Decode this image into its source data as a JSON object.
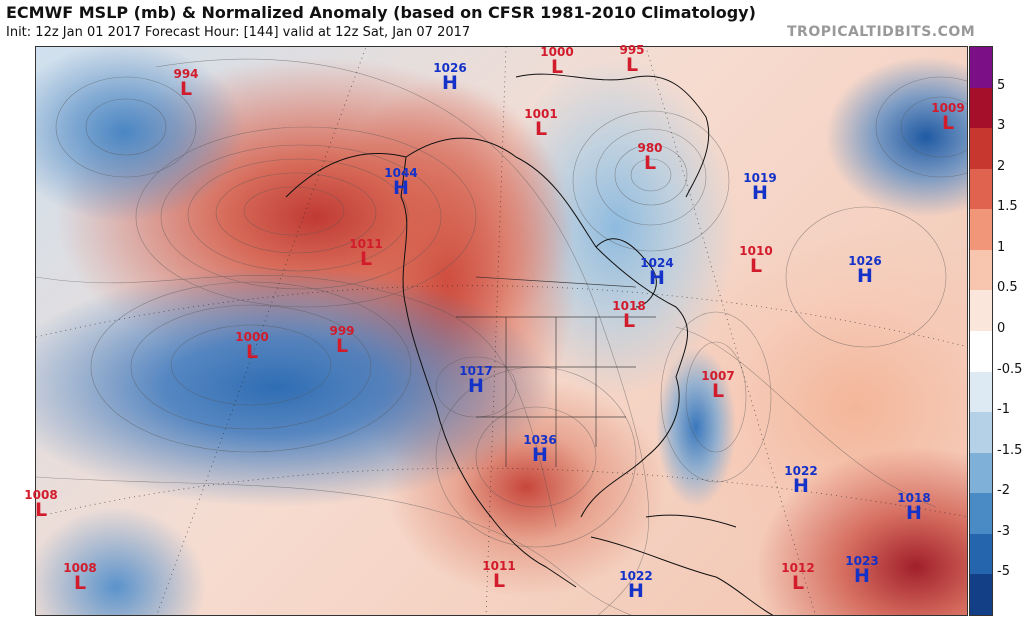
{
  "header": {
    "title": "ECMWF MSLP (mb) & Normalized Anomaly (based on CFSR 1981-2010 Climatology)",
    "subtitle": "Init: 12z Jan 01 2017   Forecast Hour: [144]   valid at 12z Sat, Jan 07 2017",
    "site": "TROPICALTIDBITS.COM"
  },
  "pressure_centers": [
    {
      "type": "L",
      "value": "994"
    },
    {
      "type": "H",
      "value": "1026"
    },
    {
      "type": "L",
      "value": "1000"
    },
    {
      "type": "L",
      "value": "995"
    },
    {
      "type": "L",
      "value": "1009"
    },
    {
      "type": "L",
      "value": "1001"
    },
    {
      "type": "L",
      "value": "980"
    },
    {
      "type": "H",
      "value": "1044"
    },
    {
      "type": "H",
      "value": "1019"
    },
    {
      "type": "L",
      "value": "1011"
    },
    {
      "type": "H",
      "value": "1024"
    },
    {
      "type": "L",
      "value": "1010"
    },
    {
      "type": "H",
      "value": "1026"
    },
    {
      "type": "L",
      "value": "1018"
    },
    {
      "type": "L",
      "value": "1000"
    },
    {
      "type": "L",
      "value": "999"
    },
    {
      "type": "H",
      "value": "1017"
    },
    {
      "type": "L",
      "value": "1007"
    },
    {
      "type": "H",
      "value": "1036"
    },
    {
      "type": "L",
      "value": "1008"
    },
    {
      "type": "H",
      "value": "1022"
    },
    {
      "type": "H",
      "value": "1018"
    },
    {
      "type": "L",
      "value": "1008"
    },
    {
      "type": "L",
      "value": "1011"
    },
    {
      "type": "H",
      "value": "1022"
    },
    {
      "type": "L",
      "value": "1012"
    },
    {
      "type": "H",
      "value": "1023"
    }
  ],
  "colorbar": {
    "ticks": [
      "5",
      "3",
      "2",
      "1.5",
      "1",
      "0.5",
      "0",
      "-0.5",
      "-1",
      "-1.5",
      "-2",
      "-3",
      "-5"
    ],
    "colors": [
      "#7b0f86",
      "#a50f2a",
      "#c8372f",
      "#e0634f",
      "#f2967a",
      "#f8c5ae",
      "#fbe6dc",
      "#ffffff",
      "#dde9f3",
      "#b5d1e7",
      "#7fb1d8",
      "#4a8bc6",
      "#2565ad",
      "#123f85"
    ]
  }
}
